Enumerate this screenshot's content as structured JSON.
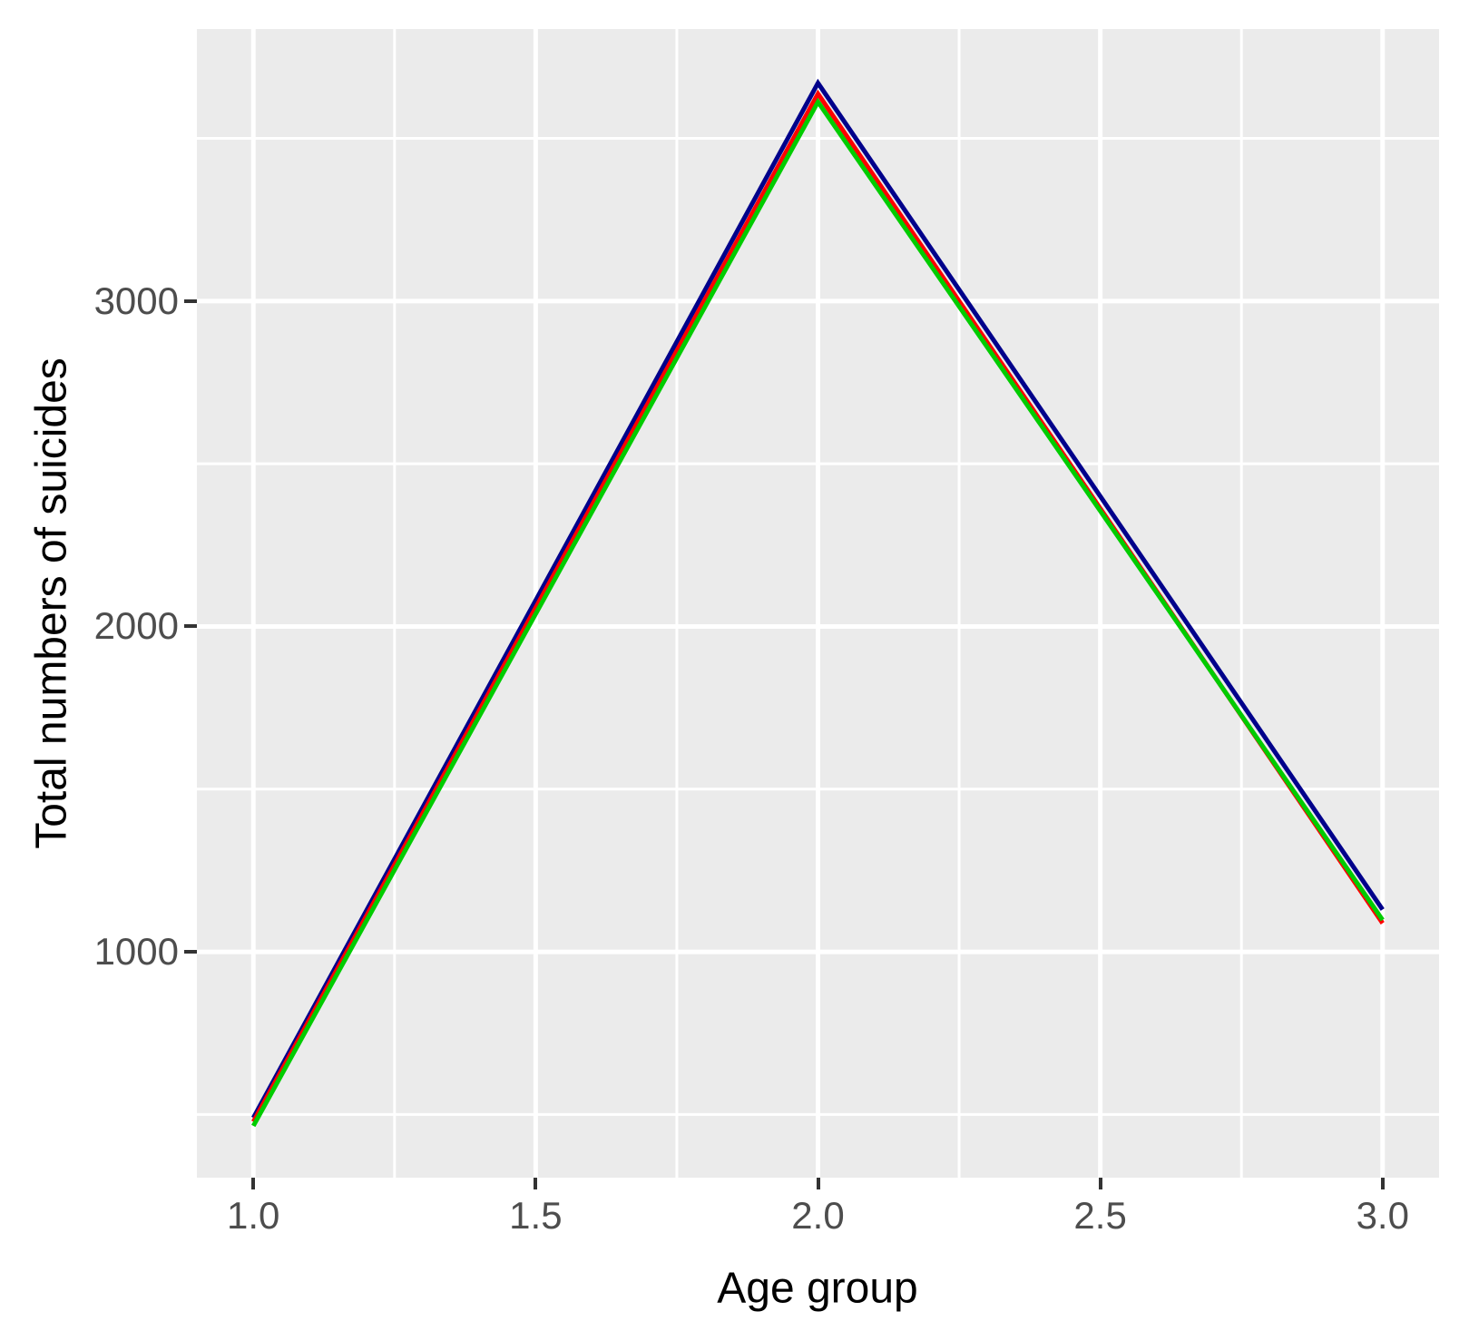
{
  "chart_data": {
    "type": "line",
    "title": "",
    "xlabel": "Age group",
    "ylabel": "Total numbers of suicides",
    "xlim": [
      0.9,
      3.1
    ],
    "ylim": [
      306,
      3836
    ],
    "x_ticks": [
      1.0,
      1.5,
      2.0,
      2.5,
      3.0
    ],
    "x_tick_labels": [
      "1.0",
      "1.5",
      "2.0",
      "2.5",
      "3.0"
    ],
    "x_minor_ticks": [
      1.25,
      1.75,
      2.25,
      2.75
    ],
    "y_ticks": [
      1000,
      2000,
      3000
    ],
    "y_tick_labels": [
      "1000",
      "2000",
      "3000"
    ],
    "y_minor_ticks": [
      500,
      1500,
      2500,
      3500
    ],
    "x": [
      1,
      2,
      3
    ],
    "series": [
      {
        "name": "blue",
        "color": "#00008B",
        "values": [
          490,
          3670,
          1130
        ]
      },
      {
        "name": "red",
        "color": "#FF0000",
        "values": [
          478,
          3637,
          1088
        ]
      },
      {
        "name": "green",
        "color": "#00CC00",
        "values": [
          465,
          3612,
          1098
        ]
      }
    ],
    "legend": "none",
    "grid": "on",
    "panel_background": "#EBEBEB",
    "grid_color": "#FFFFFF",
    "tick_label_color": "#4D4D4D",
    "axis_title_color": "#000000"
  }
}
